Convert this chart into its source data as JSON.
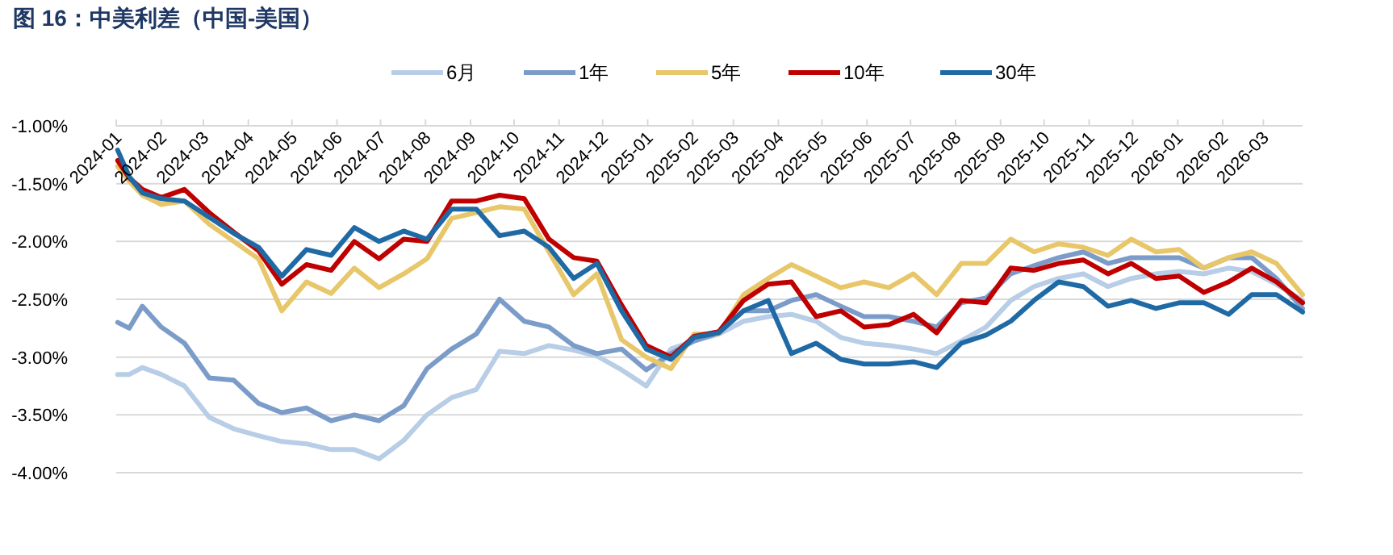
{
  "chart_data": {
    "type": "line",
    "title": "图 16：中美利差（中国-美国）",
    "x": [
      "2024-01-02",
      "2024-01-10",
      "2024-01-19",
      "2024-02-01",
      "2024-02-17",
      "2024-03-05",
      "2024-03-22",
      "2024-04-08",
      "2024-04-24",
      "2024-05-11",
      "2024-05-28",
      "2024-06-13",
      "2024-06-30",
      "2024-07-17",
      "2024-08-02",
      "2024-08-19",
      "2024-09-05",
      "2024-09-21",
      "2024-10-08",
      "2024-10-25",
      "2024-11-11",
      "2024-11-27",
      "2024-12-14",
      "2024-12-31",
      "2025-01-17",
      "2025-02-02",
      "2025-02-19",
      "2025-03-08",
      "2025-03-25",
      "2025-04-10",
      "2025-04-27",
      "2025-05-14",
      "2025-05-30",
      "2025-06-16",
      "2025-07-03",
      "2025-07-19",
      "2025-08-05",
      "2025-08-22",
      "2025-09-08",
      "2025-09-24",
      "2025-10-11",
      "2025-10-28",
      "2025-11-14",
      "2025-11-30",
      "2025-12-17",
      "2026-01-02",
      "2026-01-19",
      "2026-02-05",
      "2026-02-21",
      "2026-03-10",
      "2026-03-28"
    ],
    "series": [
      {
        "name": "6月",
        "color": "#b8cde6",
        "values": [
          -3.15,
          -3.15,
          -3.09,
          -3.15,
          -3.25,
          -3.52,
          -3.62,
          -3.68,
          -3.73,
          -3.75,
          -3.8,
          -3.8,
          -3.88,
          -3.72,
          -3.5,
          -3.35,
          -3.28,
          -2.95,
          -2.97,
          -2.9,
          -2.94,
          -2.99,
          -3.11,
          -3.25,
          -2.93,
          -2.86,
          -2.8,
          -2.69,
          -2.65,
          -2.63,
          -2.69,
          -2.83,
          -2.88,
          -2.9,
          -2.93,
          -2.97,
          -2.86,
          -2.74,
          -2.51,
          -2.39,
          -2.32,
          -2.28,
          -2.39,
          -2.32,
          -2.28,
          -2.26,
          -2.28,
          -2.23,
          -2.26,
          -2.37,
          -2.51
        ]
      },
      {
        "name": "1年",
        "color": "#7b9cc9",
        "values": [
          -2.7,
          -2.75,
          -2.56,
          -2.74,
          -2.88,
          -3.18,
          -3.2,
          -3.4,
          -3.48,
          -3.44,
          -3.55,
          -3.5,
          -3.55,
          -3.42,
          -3.1,
          -2.93,
          -2.8,
          -2.5,
          -2.69,
          -2.74,
          -2.9,
          -2.97,
          -2.93,
          -3.11,
          -2.97,
          -2.86,
          -2.79,
          -2.6,
          -2.6,
          -2.51,
          -2.46,
          -2.56,
          -2.65,
          -2.65,
          -2.69,
          -2.74,
          -2.53,
          -2.49,
          -2.28,
          -2.21,
          -2.14,
          -2.09,
          -2.19,
          -2.14,
          -2.14,
          -2.14,
          -2.23,
          -2.14,
          -2.14,
          -2.32,
          -2.58
        ]
      },
      {
        "name": "5年",
        "color": "#e8c76a",
        "values": [
          -1.35,
          -1.48,
          -1.6,
          -1.68,
          -1.65,
          -1.85,
          -2.0,
          -2.15,
          -2.6,
          -2.35,
          -2.45,
          -2.23,
          -2.4,
          -2.28,
          -2.15,
          -1.8,
          -1.75,
          -1.7,
          -1.72,
          -2.09,
          -2.46,
          -2.28,
          -2.85,
          -3.0,
          -3.1,
          -2.8,
          -2.8,
          -2.46,
          -2.32,
          -2.2,
          -2.3,
          -2.4,
          -2.35,
          -2.4,
          -2.28,
          -2.46,
          -2.19,
          -2.19,
          -1.98,
          -2.09,
          -2.02,
          -2.05,
          -2.12,
          -1.98,
          -2.09,
          -2.07,
          -2.23,
          -2.14,
          -2.09,
          -2.19,
          -2.46
        ]
      },
      {
        "name": "10年",
        "color": "#c00000",
        "values": [
          -1.3,
          -1.45,
          -1.55,
          -1.62,
          -1.55,
          -1.75,
          -1.92,
          -2.08,
          -2.37,
          -2.2,
          -2.25,
          -2.0,
          -2.15,
          -1.98,
          -2.0,
          -1.65,
          -1.65,
          -1.6,
          -1.63,
          -1.98,
          -2.14,
          -2.17,
          -2.55,
          -2.9,
          -3.0,
          -2.82,
          -2.78,
          -2.51,
          -2.37,
          -2.35,
          -2.65,
          -2.6,
          -2.74,
          -2.72,
          -2.63,
          -2.79,
          -2.51,
          -2.53,
          -2.23,
          -2.25,
          -2.19,
          -2.16,
          -2.28,
          -2.19,
          -2.32,
          -2.3,
          -2.44,
          -2.35,
          -2.23,
          -2.35,
          -2.53
        ]
      },
      {
        "name": "30年",
        "color": "#1f6aa5",
        "values": [
          -1.21,
          -1.44,
          -1.58,
          -1.63,
          -1.65,
          -1.79,
          -1.93,
          -2.05,
          -2.3,
          -2.07,
          -2.12,
          -1.88,
          -2.0,
          -1.91,
          -1.98,
          -1.72,
          -1.72,
          -1.95,
          -1.91,
          -2.05,
          -2.32,
          -2.19,
          -2.6,
          -2.93,
          -3.02,
          -2.83,
          -2.79,
          -2.6,
          -2.51,
          -2.97,
          -2.88,
          -3.02,
          -3.06,
          -3.06,
          -3.04,
          -3.09,
          -2.88,
          -2.81,
          -2.69,
          -2.51,
          -2.35,
          -2.39,
          -2.56,
          -2.51,
          -2.58,
          -2.53,
          -2.53,
          -2.63,
          -2.46,
          -2.46,
          -2.61
        ]
      }
    ],
    "xlim": [
      "2024-01-01",
      "2026-03-28"
    ],
    "xticks": [
      {
        "value": "2024-01-01",
        "label": "2024-01"
      },
      {
        "value": "2024-02-01",
        "label": "2024-02"
      },
      {
        "value": "2024-03-01",
        "label": "2024-03"
      },
      {
        "value": "2024-04-01",
        "label": "2024-04"
      },
      {
        "value": "2024-05-01",
        "label": "2024-05"
      },
      {
        "value": "2024-06-01",
        "label": "2024-06"
      },
      {
        "value": "2024-07-01",
        "label": "2024-07"
      },
      {
        "value": "2024-08-01",
        "label": "2024-08"
      },
      {
        "value": "2024-09-01",
        "label": "2024-09"
      },
      {
        "value": "2024-10-01",
        "label": "2024-10"
      },
      {
        "value": "2024-11-01",
        "label": "2024-11"
      },
      {
        "value": "2024-12-01",
        "label": "2024-12"
      },
      {
        "value": "2025-01-01",
        "label": "2025-01"
      },
      {
        "value": "2025-02-01",
        "label": "2025-02"
      },
      {
        "value": "2025-03-01",
        "label": "2025-03"
      },
      {
        "value": "2025-04-01",
        "label": "2025-04"
      },
      {
        "value": "2025-05-01",
        "label": "2025-05"
      },
      {
        "value": "2025-06-01",
        "label": "2025-06"
      },
      {
        "value": "2025-07-01",
        "label": "2025-07"
      },
      {
        "value": "2025-08-01",
        "label": "2025-08"
      },
      {
        "value": "2025-09-01",
        "label": "2025-09"
      },
      {
        "value": "2025-10-01",
        "label": "2025-10"
      },
      {
        "value": "2025-11-01",
        "label": "2025-11"
      },
      {
        "value": "2025-12-01",
        "label": "2025-12"
      },
      {
        "value": "2026-01-01",
        "label": "2026-01"
      },
      {
        "value": "2026-02-01",
        "label": "2026-02"
      },
      {
        "value": "2026-03-01",
        "label": "2026-03"
      }
    ],
    "ylim": [
      -4.0,
      -1.0
    ],
    "yticks": [
      {
        "value": -4.0,
        "label": "-4.00%"
      },
      {
        "value": -3.5,
        "label": "-3.50%"
      },
      {
        "value": -3.0,
        "label": "-3.00%"
      },
      {
        "value": -2.5,
        "label": "-2.50%"
      },
      {
        "value": -2.0,
        "label": "-2.00%"
      },
      {
        "value": -1.5,
        "label": "-1.50%"
      },
      {
        "value": -1.0,
        "label": "-1.00%"
      }
    ],
    "grid": "y",
    "legend": "top",
    "marker": "none",
    "line_style": "solid"
  }
}
